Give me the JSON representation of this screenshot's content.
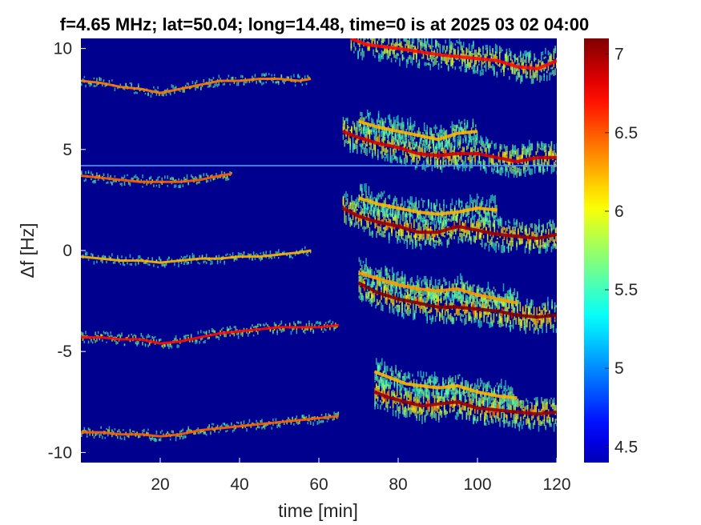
{
  "chart_data": {
    "type": "heatmap",
    "title": "f=4.65 MHz;  lat=50.04; long=14.48, time=0 is at 2025 03 02 04:00",
    "xlabel": "time [min]",
    "ylabel": "Δf [Hz]",
    "xlim": [
      0,
      120
    ],
    "ylim": [
      -10.5,
      10.5
    ],
    "xticks": [
      20,
      40,
      60,
      80,
      100,
      120
    ],
    "xtick_labels": [
      "20",
      "40",
      "60",
      "80",
      "100",
      "120"
    ],
    "yticks": [
      -10,
      -5,
      0,
      5,
      10
    ],
    "ytick_labels": [
      "-10",
      "-5",
      "0",
      "5",
      "10"
    ],
    "colorbar": {
      "range": [
        4.4,
        7.1
      ],
      "ticks": [
        4.5,
        5,
        5.5,
        6,
        6.5,
        7
      ],
      "tick_labels": [
        "4.5",
        "5",
        "5.5",
        "6",
        "6.5",
        "7"
      ],
      "colormap": "jet"
    },
    "background_color": "#00008f",
    "reference_line": {
      "df": 4.2,
      "color": "#5a9fff"
    },
    "series": [
      {
        "traces": [
          {
            "points": [
              [
                0,
                8.4
              ],
              [
                5,
                8.3
              ],
              [
                10,
                8.1
              ],
              [
                15,
                8.0
              ],
              [
                20,
                7.8
              ],
              [
                25,
                8.0
              ],
              [
                30,
                8.2
              ],
              [
                35,
                8.4
              ],
              [
                40,
                8.4
              ],
              [
                45,
                8.5
              ],
              [
                50,
                8.5
              ],
              [
                55,
                8.4
              ],
              [
                58,
                8.5
              ]
            ],
            "intensity": 0.55
          },
          {
            "points": [
              [
                68,
                10.5
              ],
              [
                72,
                10.2
              ],
              [
                80,
                10.0
              ],
              [
                90,
                9.7
              ],
              [
                95,
                9.6
              ],
              [
                100,
                9.5
              ],
              [
                105,
                9.4
              ],
              [
                110,
                9.1
              ],
              [
                115,
                9.0
              ],
              [
                120,
                9.4
              ]
            ],
            "intensity": 0.75
          }
        ]
      },
      {
        "traces": [
          {
            "points": [
              [
                0,
                3.7
              ],
              [
                5,
                3.6
              ],
              [
                10,
                3.5
              ],
              [
                15,
                3.4
              ],
              [
                20,
                3.4
              ],
              [
                25,
                3.4
              ],
              [
                30,
                3.5
              ],
              [
                35,
                3.7
              ],
              [
                38,
                3.8
              ]
            ],
            "intensity": 0.6
          },
          {
            "points": [
              [
                66,
                5.9
              ],
              [
                70,
                5.6
              ],
              [
                75,
                5.3
              ],
              [
                80,
                5.1
              ],
              [
                85,
                4.8
              ],
              [
                90,
                4.7
              ],
              [
                95,
                4.8
              ],
              [
                100,
                4.8
              ],
              [
                105,
                4.6
              ],
              [
                110,
                4.4
              ],
              [
                115,
                4.6
              ],
              [
                120,
                4.6
              ]
            ],
            "intensity": 0.85
          },
          {
            "points": [
              [
                70,
                6.4
              ],
              [
                75,
                6.1
              ],
              [
                80,
                5.9
              ],
              [
                85,
                5.7
              ],
              [
                90,
                5.5
              ],
              [
                95,
                5.8
              ],
              [
                100,
                5.9
              ]
            ],
            "intensity": 0.45
          }
        ]
      },
      {
        "traces": [
          {
            "points": [
              [
                0,
                -0.3
              ],
              [
                5,
                -0.4
              ],
              [
                10,
                -0.5
              ],
              [
                15,
                -0.5
              ],
              [
                20,
                -0.6
              ],
              [
                25,
                -0.5
              ],
              [
                30,
                -0.4
              ],
              [
                35,
                -0.4
              ],
              [
                40,
                -0.3
              ],
              [
                45,
                -0.3
              ],
              [
                50,
                -0.2
              ],
              [
                55,
                -0.1
              ],
              [
                58,
                0.0
              ]
            ],
            "intensity": 0.45
          },
          {
            "points": [
              [
                66,
                2.1
              ],
              [
                70,
                1.7
              ],
              [
                75,
                1.4
              ],
              [
                80,
                1.2
              ],
              [
                85,
                0.9
              ],
              [
                90,
                0.9
              ],
              [
                95,
                1.2
              ],
              [
                100,
                1.0
              ],
              [
                105,
                0.8
              ],
              [
                110,
                0.7
              ],
              [
                115,
                0.6
              ],
              [
                120,
                0.8
              ]
            ],
            "intensity": 0.95
          },
          {
            "points": [
              [
                70,
                2.6
              ],
              [
                75,
                2.3
              ],
              [
                80,
                2.1
              ],
              [
                85,
                1.9
              ],
              [
                90,
                1.8
              ],
              [
                95,
                1.9
              ],
              [
                100,
                2.1
              ],
              [
                105,
                2.0
              ]
            ],
            "intensity": 0.45
          }
        ]
      },
      {
        "traces": [
          {
            "points": [
              [
                0,
                -4.3
              ],
              [
                5,
                -4.3
              ],
              [
                10,
                -4.4
              ],
              [
                15,
                -4.4
              ],
              [
                20,
                -4.6
              ],
              [
                25,
                -4.5
              ],
              [
                30,
                -4.3
              ],
              [
                35,
                -4.1
              ],
              [
                40,
                -4.0
              ],
              [
                45,
                -3.9
              ],
              [
                50,
                -3.8
              ],
              [
                55,
                -3.8
              ],
              [
                60,
                -3.8
              ],
              [
                65,
                -3.7
              ]
            ],
            "intensity": 0.75
          },
          {
            "points": [
              [
                70,
                -1.6
              ],
              [
                75,
                -2.1
              ],
              [
                80,
                -2.4
              ],
              [
                85,
                -2.6
              ],
              [
                90,
                -2.8
              ],
              [
                95,
                -2.8
              ],
              [
                100,
                -2.9
              ],
              [
                105,
                -3.0
              ],
              [
                110,
                -3.2
              ],
              [
                115,
                -3.3
              ],
              [
                120,
                -3.2
              ]
            ],
            "intensity": 1.0
          },
          {
            "points": [
              [
                70,
                -1.1
              ],
              [
                75,
                -1.4
              ],
              [
                80,
                -1.7
              ],
              [
                85,
                -1.9
              ],
              [
                90,
                -2.0
              ],
              [
                95,
                -1.9
              ],
              [
                100,
                -2.2
              ],
              [
                105,
                -2.4
              ],
              [
                110,
                -2.6
              ]
            ],
            "intensity": 0.5
          }
        ]
      },
      {
        "traces": [
          {
            "points": [
              [
                0,
                -9.0
              ],
              [
                5,
                -9.0
              ],
              [
                10,
                -9.1
              ],
              [
                15,
                -9.1
              ],
              [
                20,
                -9.2
              ],
              [
                25,
                -9.1
              ],
              [
                30,
                -8.9
              ],
              [
                35,
                -8.8
              ],
              [
                40,
                -8.7
              ],
              [
                45,
                -8.6
              ],
              [
                50,
                -8.5
              ],
              [
                55,
                -8.4
              ],
              [
                60,
                -8.3
              ],
              [
                65,
                -8.2
              ]
            ],
            "intensity": 0.6
          },
          {
            "points": [
              [
                74,
                -7.0
              ],
              [
                78,
                -7.3
              ],
              [
                82,
                -7.5
              ],
              [
                86,
                -7.7
              ],
              [
                90,
                -7.6
              ],
              [
                95,
                -7.5
              ],
              [
                100,
                -7.8
              ],
              [
                105,
                -7.9
              ],
              [
                110,
                -8.0
              ],
              [
                115,
                -8.1
              ],
              [
                120,
                -8.0
              ]
            ],
            "intensity": 0.95
          },
          {
            "points": [
              [
                74,
                -6.0
              ],
              [
                78,
                -6.3
              ],
              [
                82,
                -6.6
              ],
              [
                86,
                -6.7
              ],
              [
                90,
                -6.8
              ],
              [
                95,
                -6.7
              ],
              [
                100,
                -7.0
              ],
              [
                105,
                -7.2
              ],
              [
                110,
                -7.3
              ]
            ],
            "intensity": 0.45
          }
        ]
      }
    ]
  }
}
